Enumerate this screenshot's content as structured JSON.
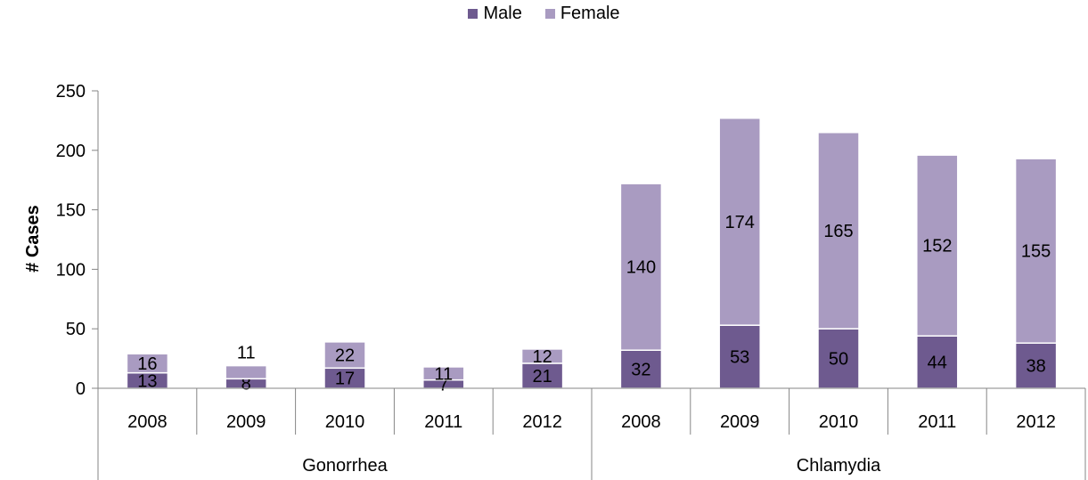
{
  "chart_data": {
    "type": "bar",
    "stacked": true,
    "title": "",
    "ylabel": "# Cases",
    "xlabel": "",
    "ylim": [
      0,
      250
    ],
    "yticks": [
      "0",
      "50",
      "100",
      "150",
      "200",
      "250"
    ],
    "grid": false,
    "legend_position": "top-center",
    "groups": [
      {
        "name": "Gonorrhea",
        "categories": [
          "2008",
          "2009",
          "2010",
          "2011",
          "2012"
        ]
      },
      {
        "name": "Chlamydia",
        "categories": [
          "2008",
          "2009",
          "2010",
          "2011",
          "2012"
        ]
      }
    ],
    "series": [
      {
        "name": "Male",
        "color": "#6e5a8f",
        "values": [
          13,
          8,
          17,
          7,
          21,
          32,
          53,
          50,
          44,
          38
        ]
      },
      {
        "name": "Female",
        "color": "#a99bc1",
        "values": [
          16,
          11,
          22,
          11,
          12,
          140,
          174,
          165,
          152,
          155
        ]
      }
    ]
  }
}
